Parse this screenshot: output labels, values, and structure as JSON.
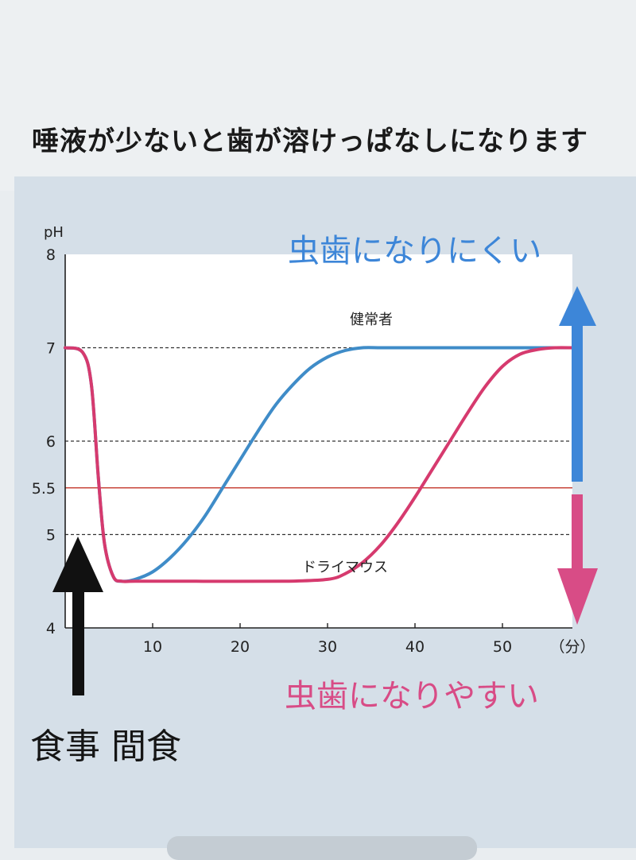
{
  "page": {
    "title": "唾液が少ないと歯が溶けっぱなしになります",
    "annotation_up": "虫歯になりにくい",
    "annotation_down": "虫歯になりやすい",
    "meal_label": "食事 間食"
  },
  "chart_data": {
    "type": "line",
    "title": "",
    "xlabel": "",
    "ylabel": "pH",
    "x_unit": "（分）",
    "xlim": [
      0,
      58
    ],
    "ylim": [
      4,
      8
    ],
    "x_ticks": [
      10,
      20,
      30,
      40,
      50
    ],
    "y_ticks": [
      {
        "value": 8,
        "label": "8"
      },
      {
        "value": 7,
        "label": "7"
      },
      {
        "value": 6,
        "label": "6"
      },
      {
        "value": 5.5,
        "label": "5.5"
      },
      {
        "value": 5,
        "label": "5"
      },
      {
        "value": 4,
        "label": "4"
      }
    ],
    "dashed_gridlines": [
      7,
      6,
      5
    ],
    "critical_line": {
      "value": 5.5,
      "color": "#c8463a"
    },
    "series": [
      {
        "name": "健常者",
        "color": "#3f8cc8",
        "x": [
          0,
          2,
          3,
          3.8,
          4.5,
          5.5,
          6.5,
          8,
          10,
          12,
          14,
          16,
          18,
          20,
          22,
          24,
          26,
          28,
          30,
          32,
          34,
          36,
          38,
          40,
          45,
          50,
          55,
          58
        ],
        "y": [
          7.0,
          6.95,
          6.6,
          5.6,
          4.9,
          4.55,
          4.5,
          4.52,
          4.6,
          4.75,
          4.95,
          5.2,
          5.5,
          5.8,
          6.1,
          6.38,
          6.6,
          6.78,
          6.9,
          6.97,
          7.0,
          7.0,
          7.0,
          7.0,
          7.0,
          7.0,
          7.0,
          7.0
        ]
      },
      {
        "name": "ドライマウス",
        "color": "#d63a6e",
        "x": [
          0,
          2,
          3,
          3.8,
          4.5,
          5.5,
          6.5,
          8,
          15,
          25,
          30,
          32,
          34,
          36,
          38,
          40,
          42,
          44,
          46,
          48,
          50,
          52,
          54,
          56,
          58
        ],
        "y": [
          7.0,
          6.95,
          6.6,
          5.6,
          4.9,
          4.55,
          4.5,
          4.5,
          4.5,
          4.5,
          4.52,
          4.58,
          4.7,
          4.88,
          5.12,
          5.4,
          5.7,
          6.0,
          6.3,
          6.58,
          6.8,
          6.93,
          6.98,
          7.0,
          7.0
        ]
      }
    ]
  }
}
